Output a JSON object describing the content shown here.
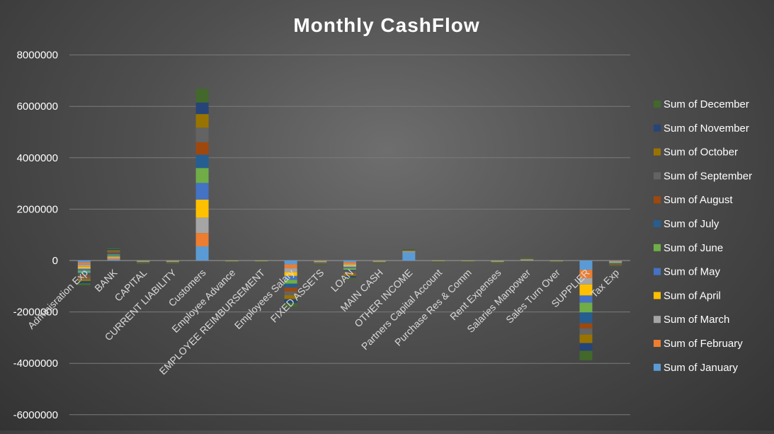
{
  "chart_data": {
    "type": "bar",
    "stacked": true,
    "title": "Monthly CashFlow",
    "xlabel": "",
    "ylabel": "",
    "ylim": [
      -6000000,
      8000000
    ],
    "yticks": [
      8000000,
      6000000,
      4000000,
      2000000,
      0,
      -2000000,
      -4000000,
      -6000000
    ],
    "grid": true,
    "legend_position": "right",
    "categories": [
      "Adminisration Exp",
      "BANK",
      "CAPITAL",
      "CURRENT LIABILITY",
      "Customers",
      "Employee Advance",
      "EMPLOYEE REIMBURSEMENT",
      "Employees Salary",
      "FIXED ASSETS",
      "LOAN",
      "MAIN CASH",
      "OTHER INCOME",
      "Partners Capital Account",
      "Purchase Res & Comm",
      "Rent Expenses",
      "Salaries Manpower",
      "Sales Turn Over",
      "SUPPLIER",
      "Tax Exp"
    ],
    "series": [
      {
        "name": "Sum of January",
        "color": "#5b9bd5",
        "values": [
          -80000,
          40000,
          -10000,
          -10000,
          550000,
          -5000,
          -5000,
          -150000,
          -15000,
          -60000,
          -10000,
          330000,
          -5000,
          -5000,
          -10000,
          10000,
          -5000,
          -360000,
          -20000
        ]
      },
      {
        "name": "Sum of February",
        "color": "#ed7d31",
        "values": [
          -80000,
          40000,
          -10000,
          -10000,
          520000,
          -5000,
          -5000,
          -150000,
          -15000,
          -60000,
          -10000,
          10000,
          -5000,
          -5000,
          -10000,
          10000,
          -5000,
          -320000,
          -20000
        ]
      },
      {
        "name": "Sum of March",
        "color": "#a5a5a5",
        "values": [
          -80000,
          40000,
          -10000,
          -10000,
          600000,
          -5000,
          -5000,
          -150000,
          -15000,
          -60000,
          -10000,
          10000,
          -5000,
          -5000,
          -10000,
          10000,
          -5000,
          -250000,
          -20000
        ]
      },
      {
        "name": "Sum of April",
        "color": "#ffc000",
        "values": [
          -80000,
          40000,
          -10000,
          -10000,
          700000,
          -5000,
          -5000,
          -150000,
          -15000,
          -60000,
          -10000,
          10000,
          -5000,
          -5000,
          -10000,
          10000,
          -5000,
          -430000,
          -20000
        ]
      },
      {
        "name": "Sum of May",
        "color": "#4472c4",
        "values": [
          -80000,
          40000,
          -10000,
          -10000,
          650000,
          -5000,
          -5000,
          -150000,
          -15000,
          -60000,
          -10000,
          10000,
          -5000,
          -5000,
          -10000,
          10000,
          -5000,
          -280000,
          -20000
        ]
      },
      {
        "name": "Sum of June",
        "color": "#70ad47",
        "values": [
          -80000,
          40000,
          -10000,
          -10000,
          580000,
          -5000,
          -5000,
          -150000,
          -15000,
          -60000,
          -10000,
          10000,
          -5000,
          -5000,
          -10000,
          10000,
          -5000,
          -380000,
          -20000
        ]
      },
      {
        "name": "Sum of July",
        "color": "#255e91",
        "values": [
          -80000,
          40000,
          -10000,
          -10000,
          520000,
          -5000,
          -5000,
          -150000,
          -15000,
          -60000,
          -10000,
          10000,
          -5000,
          -5000,
          -10000,
          10000,
          -5000,
          -420000,
          -20000
        ]
      },
      {
        "name": "Sum of August",
        "color": "#9e480e",
        "values": [
          -80000,
          40000,
          -10000,
          -10000,
          480000,
          -5000,
          -5000,
          -150000,
          -15000,
          -60000,
          -10000,
          10000,
          -5000,
          -5000,
          -10000,
          10000,
          -5000,
          -200000,
          -20000
        ]
      },
      {
        "name": "Sum of September",
        "color": "#636363",
        "values": [
          -80000,
          40000,
          -10000,
          -10000,
          570000,
          -5000,
          -5000,
          -150000,
          -15000,
          -60000,
          -10000,
          10000,
          -5000,
          -5000,
          -10000,
          10000,
          -5000,
          -240000,
          -20000
        ]
      },
      {
        "name": "Sum of October",
        "color": "#997300",
        "values": [
          -80000,
          40000,
          -10000,
          -10000,
          530000,
          -5000,
          -5000,
          -150000,
          -15000,
          -60000,
          -10000,
          10000,
          -5000,
          -5000,
          -10000,
          10000,
          -5000,
          -330000,
          -20000
        ]
      },
      {
        "name": "Sum of November",
        "color": "#264478",
        "values": [
          -80000,
          40000,
          -10000,
          -10000,
          450000,
          -5000,
          -5000,
          -150000,
          -15000,
          -60000,
          -10000,
          10000,
          -5000,
          -5000,
          -10000,
          10000,
          -5000,
          -300000,
          -20000
        ]
      },
      {
        "name": "Sum of December",
        "color": "#43682b",
        "values": [
          -80000,
          40000,
          -10000,
          -10000,
          530000,
          -5000,
          -5000,
          -150000,
          -15000,
          -60000,
          -10000,
          10000,
          -5000,
          -5000,
          -10000,
          10000,
          -5000,
          -370000,
          -20000
        ]
      }
    ]
  }
}
